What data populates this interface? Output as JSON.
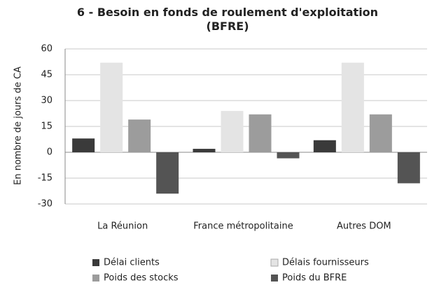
{
  "chart_data": {
    "type": "bar",
    "title": "6 - Besoin en fonds de roulement d'exploitation (BFRE)",
    "y_label": "En  nombre de jours de CA",
    "categories": [
      "La Réunion",
      "France métropolitaine",
      "Autres DOM"
    ],
    "series": [
      {
        "name": "Délai clients",
        "color": "#3a3a3a",
        "values": [
          8,
          2,
          7
        ]
      },
      {
        "name": "Délais fournisseurs",
        "color": "#e4e4e4",
        "values": [
          52,
          24,
          52
        ]
      },
      {
        "name": "Poids des stocks",
        "color": "#9c9c9c",
        "values": [
          19,
          22,
          22
        ]
      },
      {
        "name": "Poids du BFRE",
        "color": "#545454",
        "values": [
          -24,
          -3.5,
          -18
        ]
      }
    ],
    "ylim": [
      -30,
      60
    ],
    "yticks": [
      -30,
      -15,
      0,
      15,
      30,
      45,
      60
    ],
    "grid": true
  }
}
